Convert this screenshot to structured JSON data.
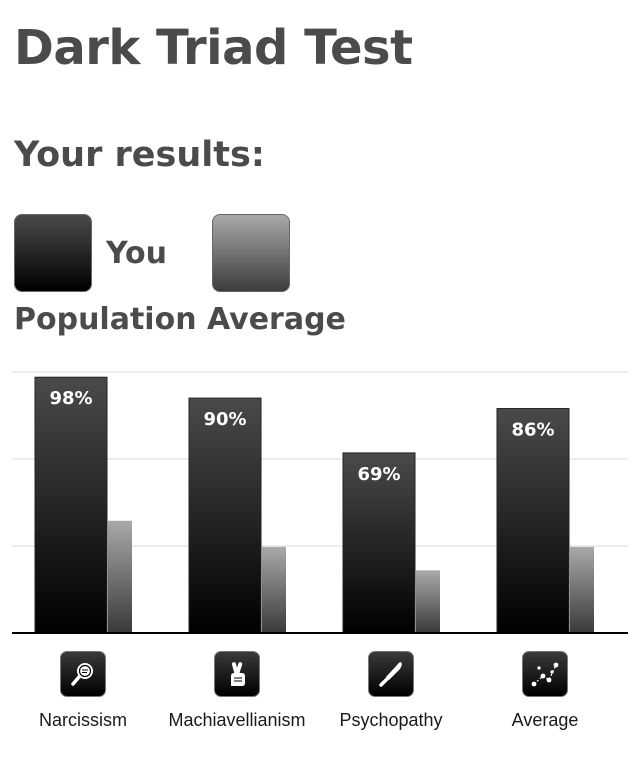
{
  "page": {
    "title": "Dark Triad Test",
    "subtitle": "Your results:"
  },
  "legend": {
    "you_label": "You",
    "population_label": "Population Average",
    "you_color": "#000000",
    "population_color": "#5a5a5a"
  },
  "chart_data": {
    "type": "bar",
    "categories": [
      "Narcissism",
      "Machiavellianism",
      "Psychopathy",
      "Average"
    ],
    "series": [
      {
        "name": "You",
        "values": [
          98,
          90,
          69,
          86
        ],
        "labels": [
          "98%",
          "90%",
          "69%",
          "86%"
        ]
      },
      {
        "name": "Population Average",
        "values": [
          43,
          33,
          24,
          33
        ]
      }
    ],
    "ylim": [
      0,
      100
    ],
    "grid": true,
    "legend_position": "top",
    "icons": [
      "magnifier-icon",
      "crossed-fingers-icon",
      "knife-icon",
      "scatter-plot-icon"
    ]
  }
}
